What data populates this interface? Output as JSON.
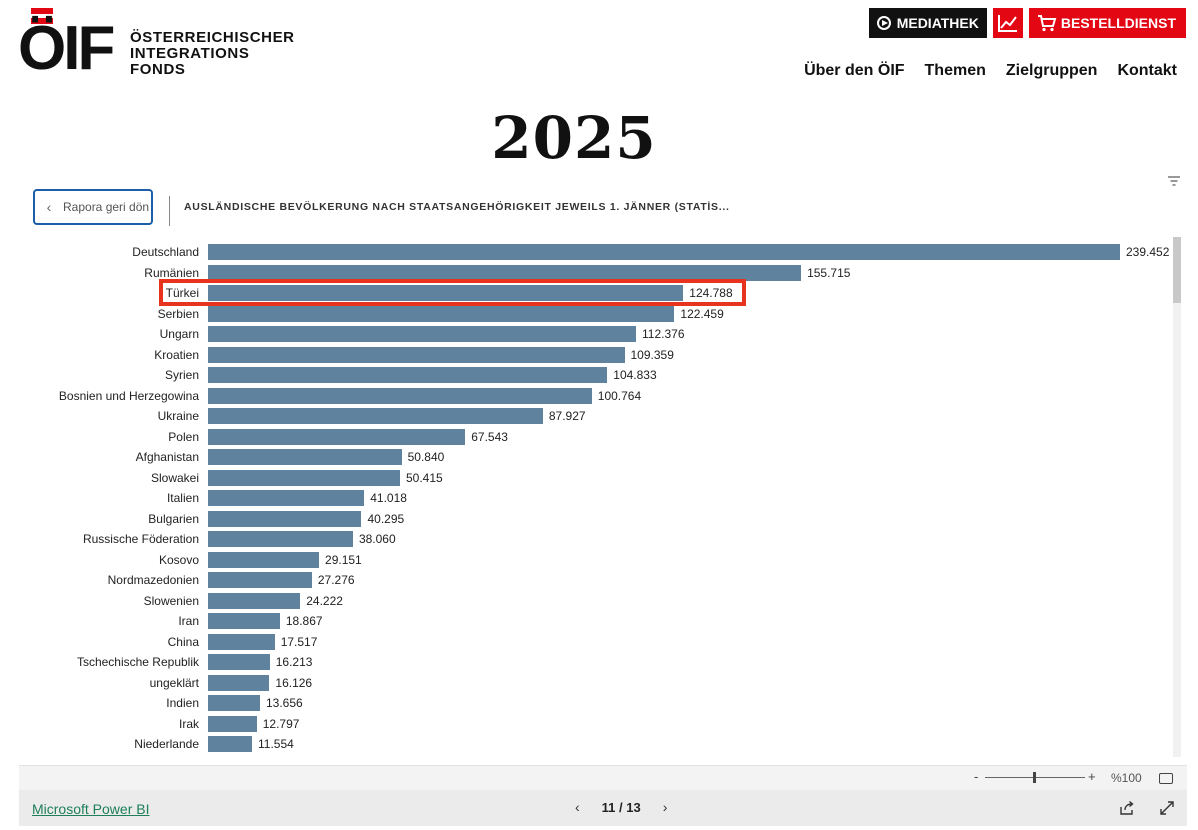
{
  "header": {
    "logo_mark": "ÖIF",
    "logo_lines": [
      "ÖSTERREICHISCHER",
      "INTEGRATIONS",
      "FONDS"
    ],
    "buttons": {
      "mediathek": "MEDIATHEK",
      "bestelldienst": "BESTELLDIENST"
    },
    "nav": [
      "Über den ÖIF",
      "Themen",
      "Zielgruppen",
      "Kontakt"
    ],
    "colors": {
      "brand_red": "#e30613",
      "dark": "#111111"
    }
  },
  "page_heading": "2025",
  "report": {
    "back_button_label": "Rapora geri dön",
    "visual_title": "AUSLÄNDISCHE BEVÖLKERUNG NACH STAATSANGEHÖRIGKEIT JEWEILS 1. JÄNNER (STATİS...",
    "highlighted_category": "Türkei",
    "bar_color": "#5f839f",
    "highlight_color": "#e8331e"
  },
  "chart_data": {
    "type": "bar",
    "orientation": "horizontal",
    "title": "AUSLÄNDISCHE BEVÖLKERUNG NACH STAATSANGEHÖRIGKEIT JEWEILS 1. JÄNNER (STATİS...",
    "categories": [
      "Deutschland",
      "Rumänien",
      "Türkei",
      "Serbien",
      "Ungarn",
      "Kroatien",
      "Syrien",
      "Bosnien und Herzegowina",
      "Ukraine",
      "Polen",
      "Afghanistan",
      "Slowakei",
      "Italien",
      "Bulgarien",
      "Russische Föderation",
      "Kosovo",
      "Nordmazedonien",
      "Slowenien",
      "Iran",
      "China",
      "Tschechische Republik",
      "ungeklärt",
      "Indien",
      "Irak",
      "Niederlande"
    ],
    "values": [
      239452,
      155715,
      124788,
      122459,
      112376,
      109359,
      104833,
      100764,
      87927,
      67543,
      50840,
      50415,
      41018,
      40295,
      38060,
      29151,
      27276,
      24222,
      18867,
      17517,
      16213,
      16126,
      13656,
      12797,
      11554
    ],
    "value_labels": [
      "239.452",
      "155.715",
      "124.788",
      "122.459",
      "112.376",
      "109.359",
      "104.833",
      "100.764",
      "87.927",
      "67.543",
      "50.840",
      "50.415",
      "41.018",
      "40.295",
      "38.060",
      "29.151",
      "27.276",
      "24.222",
      "18.867",
      "17.517",
      "16.213",
      "16.126",
      "13.656",
      "12.797",
      "11.554"
    ],
    "xlim": [
      0,
      239452
    ],
    "grid": false,
    "legend": "none",
    "xlabel": "",
    "ylabel": ""
  },
  "zoom": {
    "minus": "-",
    "plus": "+",
    "level_label": "%100",
    "level": 1.0
  },
  "footer": {
    "brand_link": "Microsoft Power BI",
    "page_indicator": "11 / 13",
    "prev": "‹",
    "next": "›"
  }
}
